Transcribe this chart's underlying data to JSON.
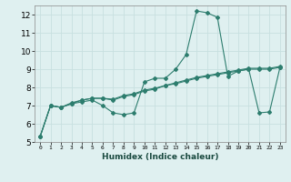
{
  "xlabel": "Humidex (Indice chaleur)",
  "ylabel": "",
  "bg_color": "#dff0f0",
  "grid_color": "#c8e0e0",
  "line_color": "#2d7d6e",
  "xlim": [
    -0.5,
    23.5
  ],
  "ylim": [
    5,
    12.5
  ],
  "yticks": [
    5,
    6,
    7,
    8,
    9,
    10,
    11,
    12
  ],
  "xticks": [
    0,
    1,
    2,
    3,
    4,
    5,
    6,
    7,
    8,
    9,
    10,
    11,
    12,
    13,
    14,
    15,
    16,
    17,
    18,
    19,
    20,
    21,
    22,
    23
  ],
  "xtick_labels": [
    "0",
    "1",
    "2",
    "3",
    "4",
    "5",
    "6",
    "7",
    "8",
    "9",
    "10",
    "11",
    "12",
    "13",
    "14",
    "15",
    "16",
    "17",
    "18",
    "19",
    "20",
    "21",
    "22",
    "23"
  ],
  "series1": [
    5.3,
    7.0,
    6.9,
    7.1,
    7.2,
    7.3,
    7.0,
    6.6,
    6.5,
    6.6,
    8.3,
    8.5,
    8.5,
    9.0,
    9.8,
    12.2,
    12.1,
    11.85,
    8.6,
    8.9,
    9.0,
    6.6,
    6.65,
    9.1
  ],
  "series2": [
    5.3,
    7.0,
    6.9,
    7.1,
    7.3,
    7.4,
    7.4,
    7.3,
    7.5,
    7.6,
    7.8,
    7.9,
    8.1,
    8.2,
    8.35,
    8.5,
    8.6,
    8.7,
    8.8,
    8.9,
    9.0,
    9.0,
    9.0,
    9.1
  ],
  "series3": [
    5.3,
    7.0,
    6.9,
    7.15,
    7.3,
    7.4,
    7.4,
    7.35,
    7.55,
    7.65,
    7.85,
    7.95,
    8.1,
    8.25,
    8.4,
    8.55,
    8.65,
    8.75,
    8.85,
    8.95,
    9.05,
    9.05,
    9.05,
    9.15
  ]
}
